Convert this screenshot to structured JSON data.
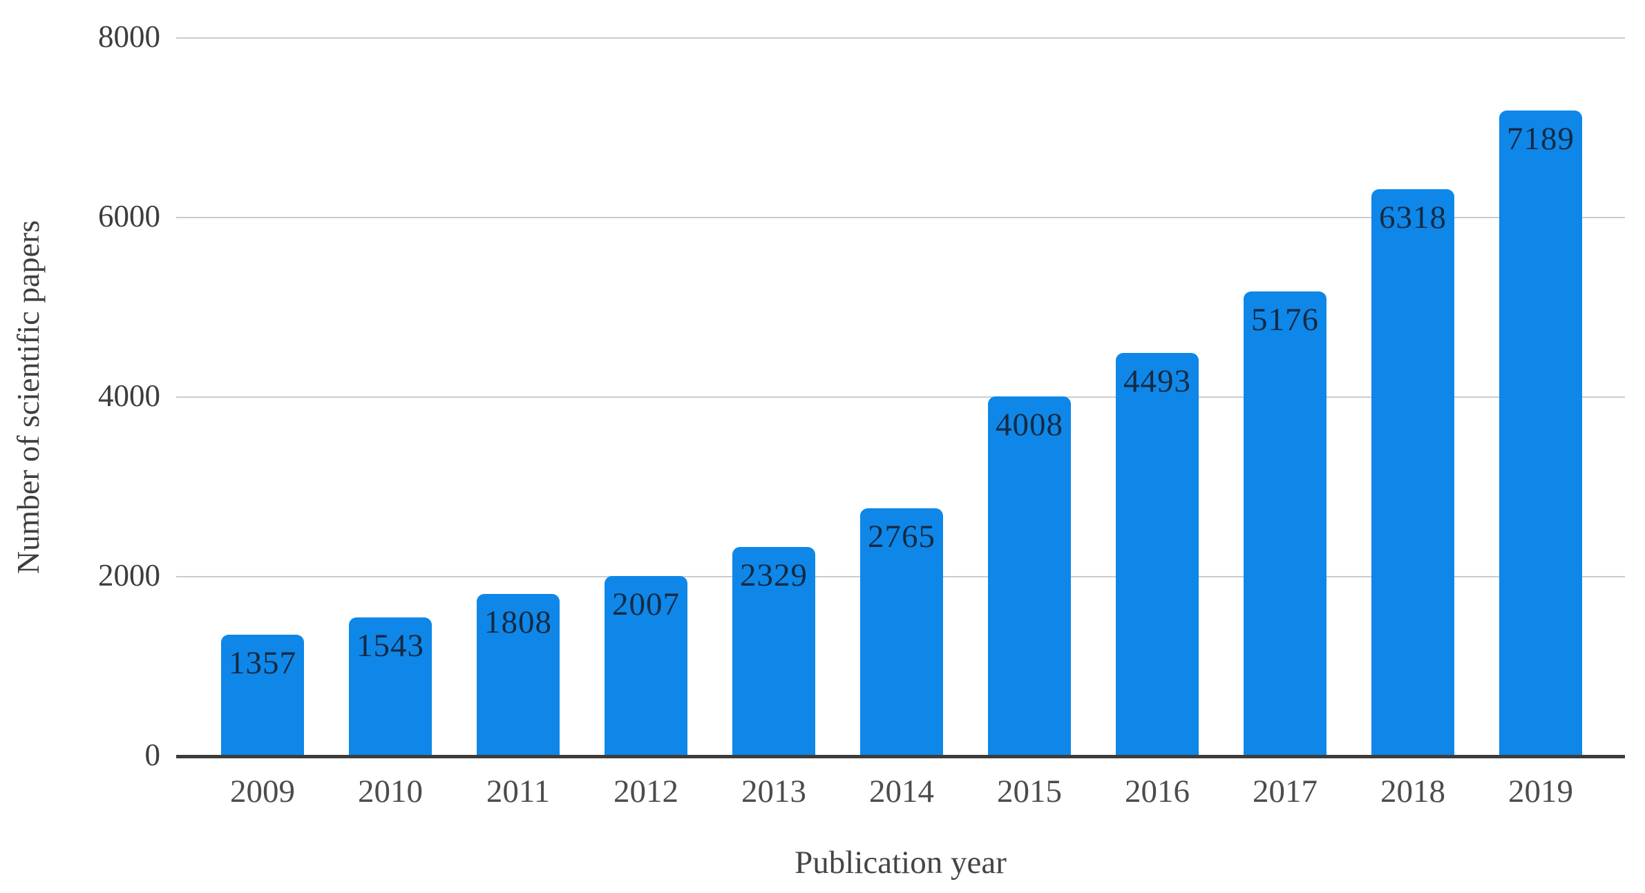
{
  "chart_data": {
    "type": "bar",
    "title": "",
    "xlabel": "Publication year",
    "ylabel": "Number of scientific papers",
    "categories": [
      "2009",
      "2010",
      "2011",
      "2012",
      "2013",
      "2014",
      "2015",
      "2016",
      "2017",
      "2018",
      "2019"
    ],
    "values": [
      1357,
      1543,
      1808,
      2007,
      2329,
      2765,
      4008,
      4493,
      5176,
      6318,
      7189
    ],
    "yticks": [
      0,
      2000,
      4000,
      6000,
      8000
    ],
    "ylim": [
      0,
      8000
    ],
    "grid": "horizontal gridlines at each y tick",
    "legend": "none",
    "colors": {
      "bar": "#0e87e8",
      "value_label": "#152a43",
      "gridline": "#cbcbcb",
      "axis_line": "#3e3c3a",
      "y_tick_label": "#3d3d3d",
      "x_tick_label": "#4c4c4c",
      "axis_title": "#454545",
      "background": "#ffffff"
    }
  }
}
